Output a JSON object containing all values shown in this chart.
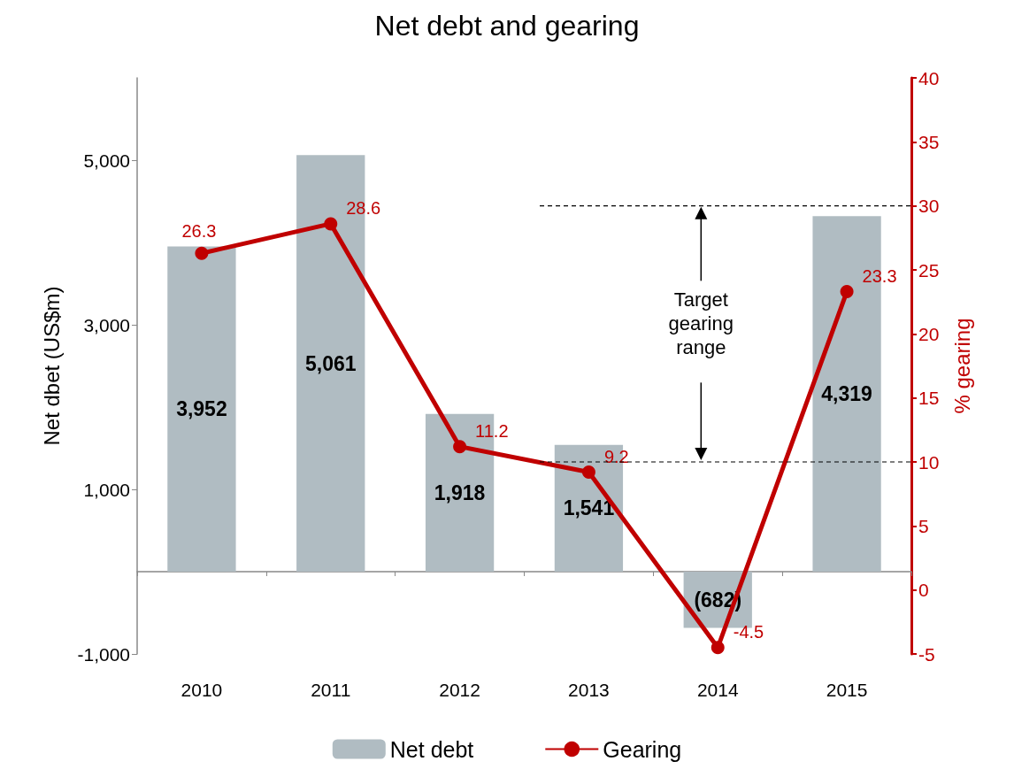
{
  "chart_data": {
    "type": "bar",
    "title": "Net debt and gearing",
    "ylabel": "Net dbet (US$m)",
    "y2label": "% gearing",
    "categories": [
      "2010",
      "2011",
      "2012",
      "2013",
      "2014",
      "2015"
    ],
    "series": [
      {
        "name": "Net debt",
        "color": "#b0bcc2",
        "values": [
          3952,
          5061,
          1918,
          1541,
          -682,
          4319
        ],
        "value_labels": [
          "3,952",
          "5,061",
          "1,918",
          "1,541",
          "(682)",
          "4,319"
        ]
      },
      {
        "name": "Gearing",
        "type": "line",
        "axis": "y2",
        "color": "#c00000",
        "values": [
          26.3,
          28.6,
          11.2,
          9.2,
          -4.5,
          23.3
        ],
        "value_labels": [
          "26.3",
          "28.6",
          "11.2",
          "9.2",
          "-4.5",
          "23.3"
        ]
      }
    ],
    "ylim": [
      -1000,
      6000
    ],
    "yticks": [
      {
        "value": -1000,
        "label": "-1,000"
      },
      {
        "value": 1000,
        "label": "1,000"
      },
      {
        "value": 3000,
        "label": "3,000"
      },
      {
        "value": 5000,
        "label": "5,000"
      }
    ],
    "y2lim": [
      -5,
      40
    ],
    "y2ticks": [
      -5,
      0,
      5,
      10,
      15,
      20,
      25,
      30,
      35,
      40
    ],
    "ref_lines": [
      {
        "axis": "y2",
        "value": 30,
        "color": "#000000",
        "line_style": "dashed"
      },
      {
        "axis": "y2",
        "value": 10,
        "color": "#000000",
        "line_style": "dashed"
      }
    ],
    "annotations": [
      "Target gearing range"
    ],
    "grid": false,
    "legend": "bottom",
    "marker": "circle",
    "line_style": "solid"
  }
}
